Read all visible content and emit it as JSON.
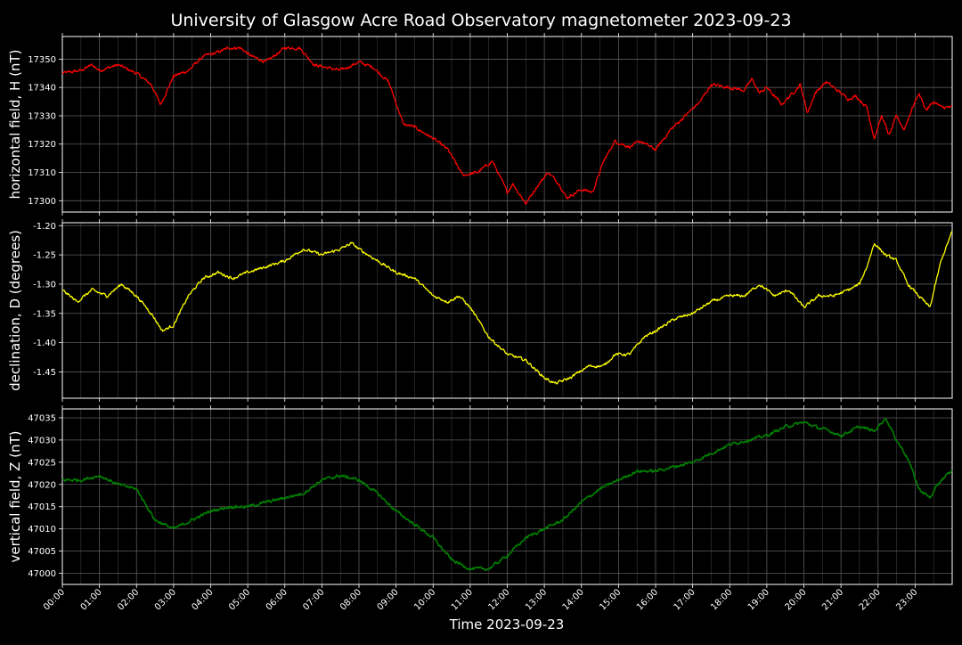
{
  "title": "University of Glasgow Acre Road Observatory magnetometer 2023-09-23",
  "xlabel": "Time 2023-09-23",
  "chart_data": [
    {
      "type": "line",
      "ylabel": "horizontal field, H (nT)",
      "color": "#ff0000",
      "ylim": [
        17296,
        17358
      ],
      "yticks": [
        17300,
        17310,
        17320,
        17330,
        17340,
        17350
      ],
      "grid": true,
      "x_hours": [
        0,
        0.5,
        0.8,
        1.0,
        1.5,
        2.0,
        2.4,
        2.65,
        3.0,
        3.4,
        3.8,
        4.1,
        4.5,
        4.8,
        5.1,
        5.5,
        6.0,
        6.4,
        6.8,
        7.5,
        8.0,
        8.4,
        8.8,
        9.2,
        9.5,
        10.0,
        10.4,
        10.8,
        11.2,
        11.6,
        12.0,
        12.15,
        12.5,
        12.8,
        13.1,
        13.4,
        13.6,
        14.0,
        14.3,
        14.6,
        14.9,
        15.3,
        15.6,
        16.0,
        16.4,
        16.8,
        17.2,
        17.5,
        18.0,
        18.4,
        18.6,
        18.8,
        19.0,
        19.4,
        19.7,
        19.9,
        20.1,
        20.3,
        20.6,
        21.0,
        21.2,
        21.4,
        21.7,
        21.9,
        22.1,
        22.3,
        22.5,
        22.7,
        22.9,
        23.1,
        23.3,
        23.5,
        23.7,
        24.0
      ],
      "y_nT": [
        17345,
        17346,
        17348,
        17346,
        17348,
        17345,
        17341,
        17334,
        17344,
        17346,
        17351,
        17352,
        17354,
        17354,
        17351,
        17349,
        17354,
        17354,
        17348,
        17346,
        17349,
        17347,
        17342,
        17327,
        17326,
        17322,
        17318,
        17309,
        17310,
        17314,
        17303,
        17306,
        17299,
        17305,
        17310,
        17306,
        17301,
        17304,
        17303,
        17314,
        17321,
        17319,
        17321,
        17318,
        17325,
        17330,
        17335,
        17341,
        17340,
        17339,
        17343,
        17338,
        17340,
        17334,
        17338,
        17341,
        17331,
        17338,
        17342,
        17338,
        17336,
        17337,
        17333,
        17322,
        17330,
        17323,
        17330,
        17325,
        17332,
        17338,
        17332,
        17335,
        17333,
        17333
      ]
    },
    {
      "type": "line",
      "ylabel": "declination, D (degrees)",
      "color": "#ffff00",
      "ylim": [
        -1.495,
        -1.195
      ],
      "yticks": [
        -1.45,
        -1.4,
        -1.35,
        -1.3,
        -1.25,
        -1.2
      ],
      "grid": true,
      "x_hours": [
        0,
        0.4,
        0.8,
        1.2,
        1.6,
        2.0,
        2.4,
        2.7,
        3.0,
        3.4,
        3.8,
        4.2,
        4.6,
        5.0,
        5.5,
        6.0,
        6.5,
        7.0,
        7.5,
        7.8,
        8.0,
        8.5,
        9.0,
        9.5,
        10.0,
        10.4,
        10.7,
        11.0,
        11.5,
        12.0,
        12.5,
        13.0,
        13.3,
        13.7,
        14.2,
        14.6,
        14.9,
        15.3,
        15.7,
        16.0,
        16.5,
        17.0,
        17.5,
        18.0,
        18.4,
        18.8,
        19.2,
        19.6,
        20.0,
        20.4,
        20.8,
        21.2,
        21.5,
        21.7,
        21.9,
        22.2,
        22.5,
        22.8,
        23.1,
        23.4,
        23.7,
        24.0
      ],
      "y_deg": [
        -1.31,
        -1.33,
        -1.31,
        -1.32,
        -1.3,
        -1.32,
        -1.35,
        -1.38,
        -1.37,
        -1.32,
        -1.29,
        -1.28,
        -1.29,
        -1.28,
        -1.27,
        -1.26,
        -1.24,
        -1.25,
        -1.24,
        -1.23,
        -1.24,
        -1.26,
        -1.28,
        -1.29,
        -1.32,
        -1.33,
        -1.32,
        -1.34,
        -1.39,
        -1.42,
        -1.43,
        -1.46,
        -1.47,
        -1.46,
        -1.44,
        -1.44,
        -1.42,
        -1.42,
        -1.39,
        -1.38,
        -1.36,
        -1.35,
        -1.33,
        -1.32,
        -1.32,
        -1.3,
        -1.32,
        -1.31,
        -1.34,
        -1.32,
        -1.32,
        -1.31,
        -1.3,
        -1.27,
        -1.23,
        -1.25,
        -1.26,
        -1.3,
        -1.32,
        -1.34,
        -1.26,
        -1.21
      ]
    },
    {
      "type": "line",
      "ylabel": "vertical field, Z (nT)",
      "color": "#008000",
      "ylim": [
        46997.5,
        47037
      ],
      "yticks": [
        47000,
        47005,
        47010,
        47015,
        47020,
        47025,
        47030,
        47035
      ],
      "grid": true,
      "x_hours": [
        0,
        0.5,
        1.0,
        1.5,
        2.0,
        2.5,
        3.0,
        3.5,
        4.0,
        4.5,
        5.0,
        5.5,
        6.0,
        6.5,
        7.0,
        7.5,
        8.0,
        8.5,
        9.0,
        9.5,
        10.0,
        10.5,
        11.0,
        11.5,
        12.0,
        12.5,
        13.0,
        13.5,
        14.0,
        14.5,
        15.0,
        15.5,
        16.0,
        16.5,
        17.0,
        17.5,
        18.0,
        18.5,
        19.0,
        19.5,
        20.0,
        20.3,
        20.7,
        21.0,
        21.5,
        21.9,
        22.2,
        22.5,
        22.8,
        23.1,
        23.4,
        23.7,
        24.0
      ],
      "y_nT": [
        47021,
        47021,
        47022,
        47020,
        47019,
        47012,
        47010,
        47012,
        47014,
        47015,
        47015,
        47016,
        47017,
        47018,
        47021,
        47022,
        47021,
        47018,
        47014,
        47011,
        47008,
        47003,
        47001,
        47001,
        47004,
        47008,
        47010,
        47012,
        47016,
        47019,
        47021,
        47023,
        47023,
        47024,
        47025,
        47027,
        47029,
        47030,
        47031,
        47033,
        47034,
        47033,
        47032,
        47031,
        47033,
        47032,
        47035,
        47030,
        47026,
        47019,
        47017,
        47021,
        47023
      ]
    }
  ],
  "xticks": [
    "00:00",
    "01:00",
    "02:00",
    "03:00",
    "04:00",
    "05:00",
    "06:00",
    "07:00",
    "08:00",
    "09:00",
    "10:00",
    "11:00",
    "12:00",
    "13:00",
    "14:00",
    "15:00",
    "16:00",
    "17:00",
    "18:00",
    "19:00",
    "20:00",
    "21:00",
    "22:00",
    "23:00"
  ],
  "xlim_hours": [
    0,
    24
  ]
}
